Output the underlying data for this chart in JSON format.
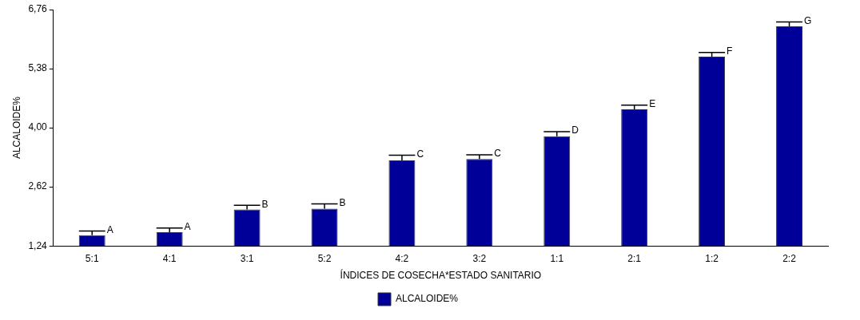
{
  "chart_data": {
    "type": "bar",
    "xlabel": "ÍNDICES DE COSECHA*ESTADO SANITARIO",
    "ylabel": "ALCALOIDE%",
    "categories": [
      "5:1",
      "4:1",
      "3:1",
      "5:2",
      "4:2",
      "3:2",
      "1:1",
      "2:1",
      "1:2",
      "2:2"
    ],
    "series": [
      {
        "name": "ALCALOIDE%",
        "color": "#000099",
        "values": [
          1.49,
          1.56,
          2.09,
          2.11,
          3.24,
          3.27,
          3.8,
          4.43,
          5.66,
          6.37
        ],
        "errors": [
          [
            1.49,
            1.59
          ],
          [
            1.56,
            1.66
          ],
          [
            2.09,
            2.19
          ],
          [
            2.11,
            2.22
          ],
          [
            3.24,
            3.36
          ],
          [
            3.27,
            3.37
          ],
          [
            3.8,
            3.91
          ],
          [
            4.43,
            4.53
          ],
          [
            5.66,
            5.76
          ],
          [
            6.37,
            6.47
          ]
        ]
      }
    ],
    "ylim": [
      1.24,
      6.76
    ],
    "yticks": [
      {
        "value": 1.24,
        "label": "1,24"
      },
      {
        "value": 2.62,
        "label": "2,62"
      },
      {
        "value": 4.0,
        "label": "4,00"
      },
      {
        "value": 5.38,
        "label": "5,38"
      },
      {
        "value": 6.76,
        "label": "6,76"
      }
    ],
    "annotations": [
      {
        "text": "A",
        "x": "5:1",
        "y": 1.59
      },
      {
        "text": "A",
        "x": "4:1",
        "y": 1.66
      },
      {
        "text": "B",
        "x": "3:1",
        "y": 2.19
      },
      {
        "text": "B",
        "x": "5:2",
        "y": 2.22
      },
      {
        "text": "C",
        "x": "4:2",
        "y": 3.36
      },
      {
        "text": "C",
        "x": "3:2",
        "y": 3.37
      },
      {
        "text": "D",
        "x": "1:1",
        "y": 3.91
      },
      {
        "text": "E",
        "x": "2:1",
        "y": 4.53
      },
      {
        "text": "F",
        "x": "1:2",
        "y": 5.76
      },
      {
        "text": "G",
        "x": "2:2",
        "y": 6.47
      }
    ],
    "grid": false,
    "legend": "bottom"
  }
}
